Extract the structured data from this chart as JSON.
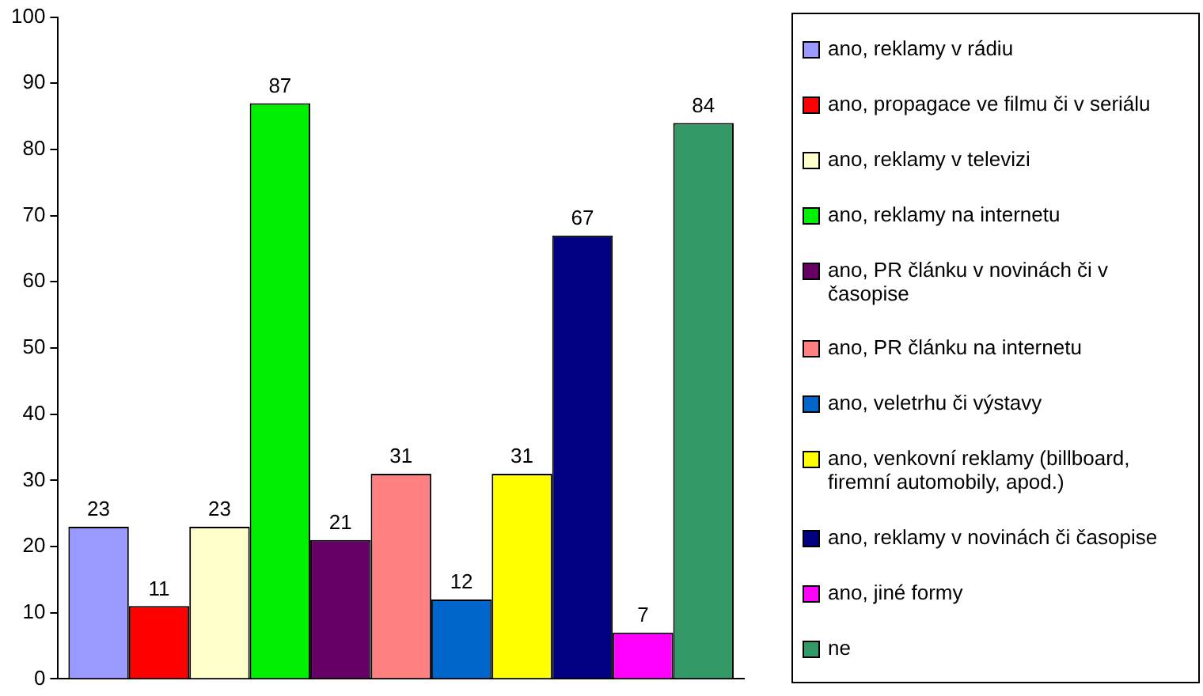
{
  "chart_data": {
    "type": "bar",
    "categories": [
      null
    ],
    "ylim": [
      0,
      100
    ],
    "yticks": [
      0,
      10,
      20,
      30,
      40,
      50,
      60,
      70,
      80,
      90,
      100
    ],
    "grid": false,
    "legend": "right",
    "data_labels": true,
    "series": [
      {
        "name": "ano, reklamy v rádiu",
        "color": "#9999ff",
        "values": [
          23
        ]
      },
      {
        "name": "ano, propagace ve filmu či v seriálu",
        "color": "#ff0000",
        "values": [
          11
        ]
      },
      {
        "name": "ano, reklamy v televizi",
        "color": "#ffffcc",
        "values": [
          23
        ]
      },
      {
        "name": "ano, reklamy na internetu",
        "color": "#00ee00",
        "values": [
          87
        ]
      },
      {
        "name": "ano, PR článku v novinách či v časopise",
        "color": "#660066",
        "values": [
          21
        ]
      },
      {
        "name": "ano, PR článku na internetu",
        "color": "#ff8080",
        "values": [
          31
        ]
      },
      {
        "name": "ano, veletrhu či výstavy",
        "color": "#0066cc",
        "values": [
          12
        ]
      },
      {
        "name": "ano, venkovní reklamy (billboard, firemní automobily, apod.)",
        "color": "#ffff00",
        "values": [
          31
        ]
      },
      {
        "name": "ano, reklamy v novinách či časopise",
        "color": "#000080",
        "values": [
          67
        ]
      },
      {
        "name": "ano, jiné formy",
        "color": "#ff00ff",
        "values": [
          7
        ]
      },
      {
        "name": "ne",
        "color": "#339966",
        "values": [
          84
        ]
      }
    ]
  }
}
